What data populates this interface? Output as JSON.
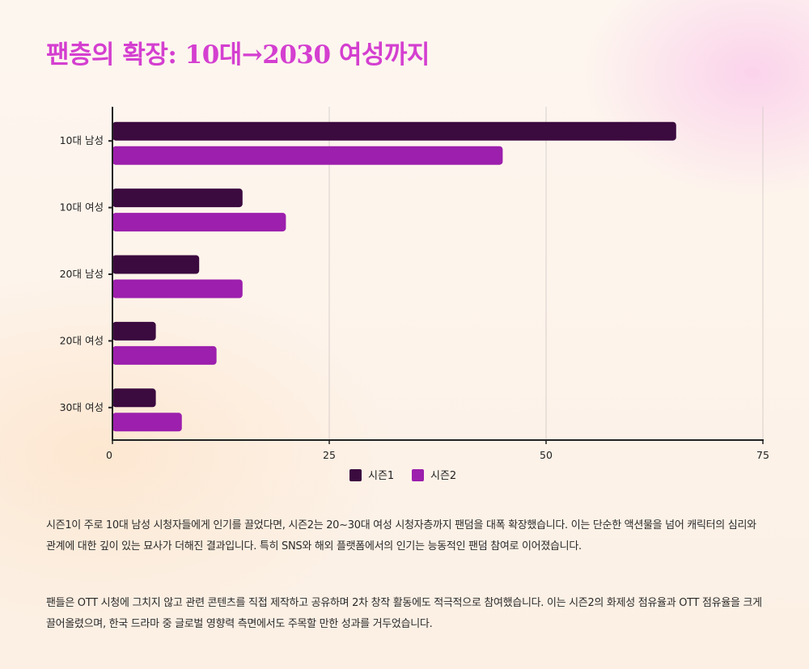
{
  "title": "팬층의 확장: 10대→2030 여성까지",
  "chart_data": {
    "type": "bar",
    "orientation": "horizontal",
    "categories": [
      "10대 남성",
      "10대 여성",
      "20대 남성",
      "20대 여성",
      "30대 여성"
    ],
    "series": [
      {
        "name": "시즌1",
        "color": "#3b0a3f",
        "values": [
          65,
          15,
          10,
          5,
          5
        ]
      },
      {
        "name": "시즌2",
        "color": "#9c1fad",
        "values": [
          45,
          20,
          15,
          12,
          8
        ]
      }
    ],
    "xlim": [
      0,
      75
    ],
    "xticks": [
      0,
      25,
      50,
      75
    ],
    "grid": true,
    "legend": "bottom-center"
  },
  "description": [
    "시즌1이 주로 10대 남성 시청자들에게 인기를 끌었다면, 시즌2는 20~30대 여성 시청자층까지 팬덤을 대폭 확장했습니다. 이는 단순한 액션물을 넘어 캐릭터의 심리와 관계에 대한 깊이 있는 묘사가 더해진 결과입니다. 특히 SNS와 해외 플랫폼에서의 인기는 능동적인 팬덤 참여로 이어졌습니다.",
    "팬들은 OTT 시청에 그치지 않고 관련 콘텐츠를 직접 제작하고 공유하며 2차 창작 활동에도 적극적으로 참여했습니다. 이는 시즌2의 화제성 점유율과 OTT 점유율을 크게 끌어올렸으며, 한국 드라마 중 글로벌 영향력 측면에서도 주목할 만한 성과를 거두었습니다."
  ]
}
